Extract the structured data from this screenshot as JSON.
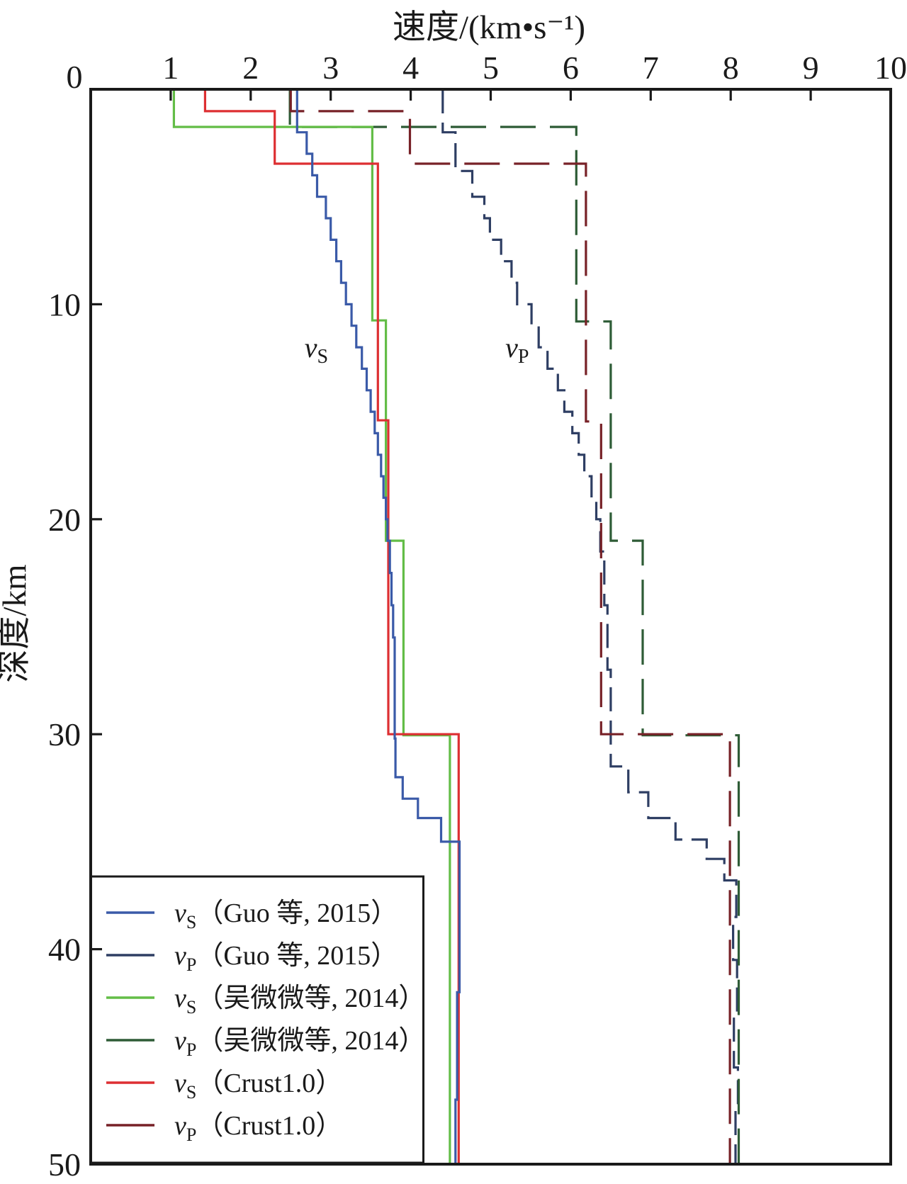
{
  "chart_data": {
    "type": "line",
    "subtype": "stepped-depth-profile",
    "xlabel": "速度/(km•s⁻¹)",
    "ylabel": "深度/km",
    "xlim": [
      0,
      10
    ],
    "ylim": [
      0,
      50
    ],
    "x_ticks": [
      0,
      1,
      2,
      3,
      4,
      5,
      6,
      7,
      8,
      9,
      10
    ],
    "y_ticks": [
      0,
      10,
      20,
      30,
      40,
      50
    ],
    "grid": false,
    "legend_position": "bottom-left-box",
    "axis_color": "#1a1a1a",
    "annotations": [
      {
        "text": "v",
        "sub": "S",
        "v": 2.82,
        "depth": 12.0
      },
      {
        "text": "v",
        "sub": "P",
        "v": 5.33,
        "depth": 12.0
      }
    ],
    "series": [
      {
        "id": "vp-guo-2015",
        "name": "vP (Guo 等, 2015)",
        "color": "#2e3e63",
        "style": "dashed",
        "dash": "short",
        "layers_v_to_depth": [
          [
            4.4,
            2.0
          ],
          [
            4.56,
            3.8
          ],
          [
            4.77,
            5.0
          ],
          [
            4.92,
            6.0
          ],
          [
            4.99,
            7.0
          ],
          [
            5.13,
            8.0
          ],
          [
            5.26,
            9.0
          ],
          [
            5.33,
            10.0
          ],
          [
            5.51,
            11.0
          ],
          [
            5.6,
            12.0
          ],
          [
            5.71,
            13.0
          ],
          [
            5.84,
            14.0
          ],
          [
            5.92,
            15.0
          ],
          [
            6.02,
            16.0
          ],
          [
            6.1,
            17.0
          ],
          [
            6.17,
            18.0
          ],
          [
            6.26,
            19.0
          ],
          [
            6.32,
            20.0
          ],
          [
            6.37,
            21.5
          ],
          [
            6.42,
            24.0
          ],
          [
            6.46,
            27.0
          ],
          [
            6.5,
            31.5
          ],
          [
            6.72,
            32.7
          ],
          [
            6.97,
            33.9
          ],
          [
            7.31,
            34.9
          ],
          [
            7.7,
            35.8
          ],
          [
            7.92,
            36.8
          ],
          [
            8.07,
            38.5
          ],
          [
            8.03,
            40.5
          ],
          [
            8.08,
            43.0
          ],
          [
            8.04,
            45.5
          ],
          [
            8.09,
            47.5
          ],
          [
            8.06,
            50.0
          ]
        ]
      },
      {
        "id": "vp-wu-2014",
        "name": "vP (吴微微等, 2014)",
        "color": "#2e5c36",
        "style": "dashed",
        "dash": "long",
        "layers_v_to_depth": [
          [
            2.49,
            1.75
          ],
          [
            6.07,
            10.8
          ],
          [
            6.5,
            21.0
          ],
          [
            6.9,
            30.05
          ],
          [
            8.1,
            50.0
          ]
        ]
      },
      {
        "id": "vp-crust1",
        "name": "vP (Crust1.0)",
        "color": "#772127",
        "style": "dashed",
        "dash": "long",
        "layers_v_to_depth": [
          [
            2.5,
            1.02
          ],
          [
            3.99,
            3.46
          ],
          [
            6.19,
            15.45
          ],
          [
            6.38,
            30.0
          ],
          [
            7.99,
            50.0
          ]
        ]
      },
      {
        "id": "vs-wu-2014",
        "name": "vS (吴微微等, 2014)",
        "color": "#63bd47",
        "style": "solid",
        "dash": null,
        "layers_v_to_depth": [
          [
            1.04,
            1.75
          ],
          [
            3.52,
            10.75
          ],
          [
            3.69,
            21.0
          ],
          [
            3.91,
            30.05
          ],
          [
            4.49,
            50.0
          ]
        ]
      },
      {
        "id": "vs-crust1",
        "name": "vS (Crust1.0)",
        "color": "#dd2f32",
        "style": "solid",
        "dash": null,
        "layers_v_to_depth": [
          [
            1.43,
            1.02
          ],
          [
            2.3,
            3.46
          ],
          [
            3.59,
            15.4
          ],
          [
            3.72,
            30.0
          ],
          [
            4.6,
            50.0
          ]
        ]
      },
      {
        "id": "vs-guo-2015",
        "name": "vS (Guo 等, 2015)",
        "color": "#3a5aa8",
        "style": "solid",
        "dash": null,
        "layers_v_to_depth": [
          [
            2.58,
            2.0
          ],
          [
            2.7,
            3.0
          ],
          [
            2.77,
            4.0
          ],
          [
            2.83,
            5.0
          ],
          [
            2.94,
            6.0
          ],
          [
            3.0,
            7.0
          ],
          [
            3.07,
            8.0
          ],
          [
            3.13,
            9.0
          ],
          [
            3.19,
            10.0
          ],
          [
            3.26,
            11.0
          ],
          [
            3.32,
            12.0
          ],
          [
            3.39,
            13.0
          ],
          [
            3.45,
            14.0
          ],
          [
            3.5,
            15.0
          ],
          [
            3.55,
            16.0
          ],
          [
            3.59,
            17.0
          ],
          [
            3.63,
            18.0
          ],
          [
            3.66,
            19.0
          ],
          [
            3.69,
            20.0
          ],
          [
            3.71,
            21.0
          ],
          [
            3.74,
            22.5
          ],
          [
            3.76,
            24.0
          ],
          [
            3.78,
            25.5
          ],
          [
            3.8,
            30.2
          ],
          [
            3.81,
            32.0
          ],
          [
            3.9,
            33.0
          ],
          [
            4.09,
            33.9
          ],
          [
            4.38,
            35.0
          ],
          [
            4.61,
            42.0
          ],
          [
            4.58,
            47.0
          ],
          [
            4.56,
            50.0
          ]
        ]
      }
    ],
    "legend": {
      "items": [
        {
          "series_id": "vs-guo-2015",
          "prefix": "v",
          "sub": "S",
          "label": "（Guo 等, 2015）"
        },
        {
          "series_id": "vp-guo-2015",
          "prefix": "v",
          "sub": "P",
          "label": "（Guo 等, 2015）"
        },
        {
          "series_id": "vs-wu-2014",
          "prefix": "v",
          "sub": "S",
          "label": "（吴微微等, 2014）"
        },
        {
          "series_id": "vp-wu-2014",
          "prefix": "v",
          "sub": "P",
          "label": "（吴微微等, 2014）"
        },
        {
          "series_id": "vs-crust1",
          "prefix": "v",
          "sub": "S",
          "label": "（Crust1.0）"
        },
        {
          "series_id": "vp-crust1",
          "prefix": "v",
          "sub": "P",
          "label": "（Crust1.0）"
        }
      ]
    }
  }
}
